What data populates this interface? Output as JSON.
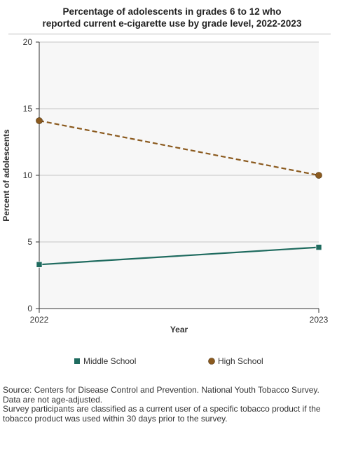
{
  "title_line1": "Percentage of adolescents in grades 6 to 12 who",
  "title_line2": "reported current e-cigarette use by grade level, 2022-2023",
  "chart_data": {
    "type": "line",
    "title": "Percentage of adolescents in grades 6 to 12 who reported current e-cigarette use by grade level, 2022-2023",
    "xlabel": "Year",
    "ylabel": "Percent of adolescents",
    "categories": [
      "2022",
      "2023"
    ],
    "ylim": [
      0,
      20
    ],
    "yticks": [
      0,
      5,
      10,
      15,
      20
    ],
    "grid": true,
    "legend_position": "bottom",
    "series": [
      {
        "name": "Middle School",
        "values": [
          3.3,
          4.6
        ],
        "color": "#1f6b5f",
        "marker": "square",
        "dash": "solid"
      },
      {
        "name": "High School",
        "values": [
          14.1,
          10.0
        ],
        "color": "#8b5a1e",
        "marker": "circle",
        "dash": "dashed"
      }
    ]
  },
  "notes": {
    "source": "Source: Centers for Disease Control and Prevention. National Youth Tobacco Survey.",
    "age_adjust": "Data are not age-adjusted.",
    "definition": "Survey participants are classified as a current user of a specific tobacco product if the tobacco product was used within 30 days prior to the survey."
  }
}
